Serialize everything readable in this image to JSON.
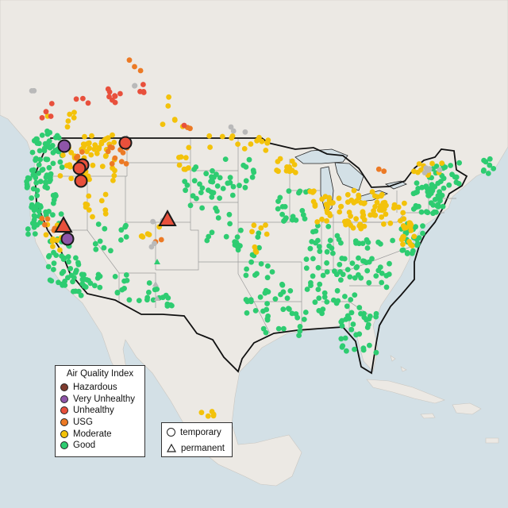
{
  "legend_aqi": {
    "title": "Air Quality Index",
    "items": [
      {
        "label": "Hazardous",
        "color": "#7e3b2e"
      },
      {
        "label": "Very Unhealthy",
        "color": "#8e55a8"
      },
      {
        "label": "Unhealthy",
        "color": "#e8503c"
      },
      {
        "label": "USG",
        "color": "#ec7a25"
      },
      {
        "label": "Moderate",
        "color": "#f3c20a"
      },
      {
        "label": "Good",
        "color": "#2ecc71"
      }
    ]
  },
  "legend_type": {
    "items": [
      {
        "label": "temporary",
        "shape": "circle"
      },
      {
        "label": "permanent",
        "shape": "triangle"
      }
    ]
  },
  "colors": {
    "ocean": "#d3e0e6",
    "land": "#ece9e4",
    "no_data": "#b9b9b9"
  }
}
